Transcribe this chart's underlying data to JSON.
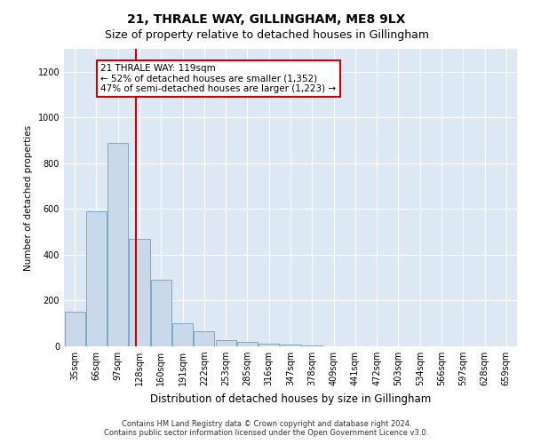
{
  "title": "21, THRALE WAY, GILLINGHAM, ME8 9LX",
  "subtitle": "Size of property relative to detached houses in Gillingham",
  "xlabel": "Distribution of detached houses by size in Gillingham",
  "ylabel": "Number of detached properties",
  "categories": [
    "35sqm",
    "66sqm",
    "97sqm",
    "128sqm",
    "160sqm",
    "191sqm",
    "222sqm",
    "253sqm",
    "285sqm",
    "316sqm",
    "347sqm",
    "378sqm",
    "409sqm",
    "441sqm",
    "472sqm",
    "503sqm",
    "534sqm",
    "566sqm",
    "597sqm",
    "628sqm",
    "659sqm"
  ],
  "bar_values": [
    150,
    590,
    890,
    470,
    290,
    100,
    65,
    28,
    18,
    10,
    8,
    2,
    1,
    0,
    0,
    0,
    0,
    0,
    0,
    0,
    0
  ],
  "bar_color": "#c9d9ea",
  "bar_edge_color": "#7aaac8",
  "bar_edge_width": 0.7,
  "vline_x": 2.85,
  "vline_color": "#cc0000",
  "annotation_line1": "21 THRALE WAY: 119sqm",
  "annotation_line2": "← 52% of detached houses are smaller (1,352)",
  "annotation_line3": "47% of semi-detached houses are larger (1,223) →",
  "annotation_box_color": "#ffffff",
  "annotation_box_edge": "#cc0000",
  "ylim": [
    0,
    1300
  ],
  "yticks": [
    0,
    200,
    400,
    600,
    800,
    1000,
    1200
  ],
  "background_color": "#dce9f5",
  "plot_bg_color": "#dce9f5",
  "footer_line1": "Contains HM Land Registry data © Crown copyright and database right 2024.",
  "footer_line2": "Contains public sector information licensed under the Open Government Licence v3.0.",
  "title_fontsize": 10,
  "subtitle_fontsize": 9,
  "xlabel_fontsize": 8.5,
  "ylabel_fontsize": 7.5,
  "tick_fontsize": 7,
  "annotation_fontsize": 7.5,
  "footer_fontsize": 6
}
